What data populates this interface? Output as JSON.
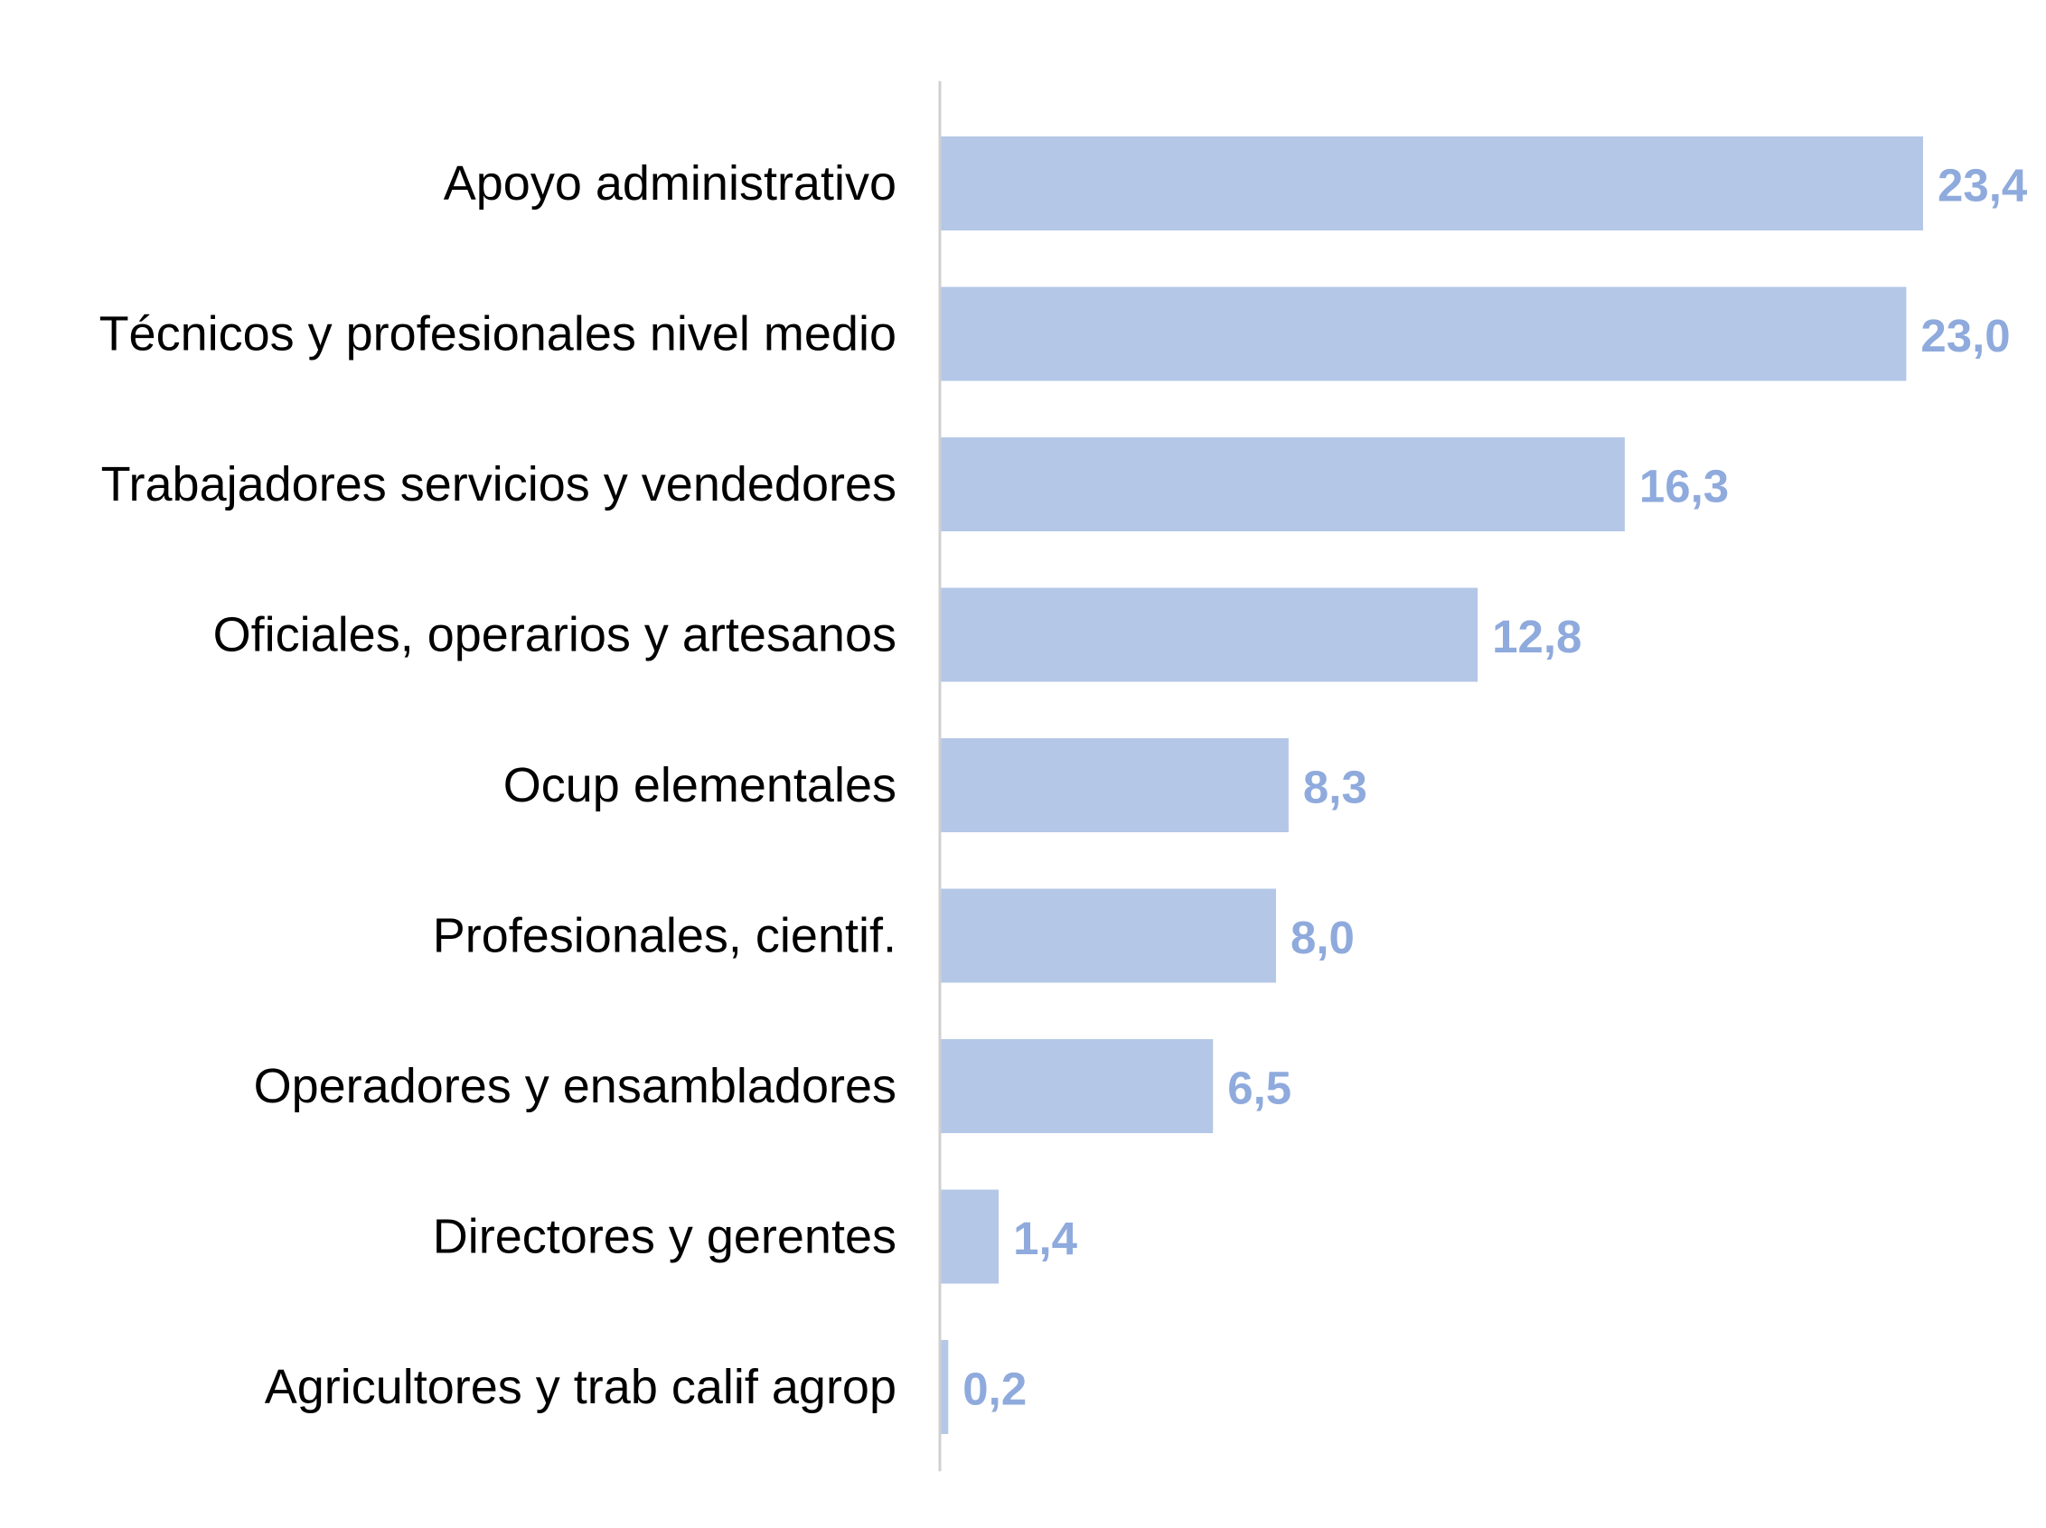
{
  "chart_data": {
    "type": "bar",
    "orientation": "horizontal",
    "title": "",
    "xlabel": "",
    "ylabel": "",
    "categories": [
      "Apoyo administrativo",
      "Técnicos y profesionales nivel medio",
      "Trabajadores servicios y vendedores",
      "Oficiales, operarios y artesanos",
      "Ocup elementales",
      "Profesionales, cientif.",
      "Operadores y ensambladores",
      "Directores y gerentes",
      "Agricultores y trab calif agrop"
    ],
    "values": [
      23.4,
      23.0,
      16.3,
      12.8,
      8.3,
      8.0,
      6.5,
      1.4,
      0.2
    ],
    "value_labels": [
      "23,4",
      "23,0",
      "16,3",
      "12,8",
      "8,3",
      "8,0",
      "6,5",
      "1,4",
      "0,2"
    ],
    "xlim": [
      0,
      23.4
    ],
    "grid": false,
    "legend": "none",
    "colors": {
      "bar": "#b4c7e7",
      "value_label": "#8faadc",
      "axis": "#d0d0d0"
    }
  }
}
